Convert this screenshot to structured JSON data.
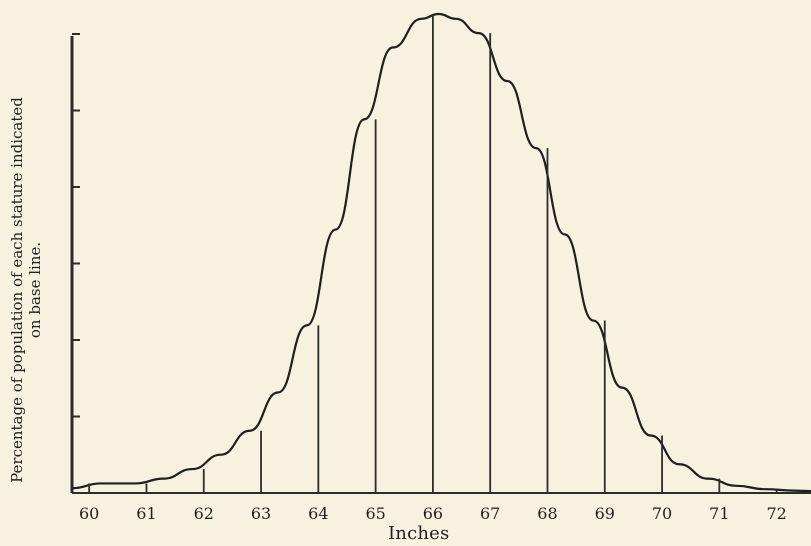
{
  "chart_data": {
    "type": "line",
    "title": "",
    "xlabel": "Inches",
    "ylabel": "Percentage of population of each stature indicated on base line.",
    "x_categories": [
      "60",
      "61",
      "62",
      "63",
      "64",
      "65",
      "66",
      "67",
      "68",
      "69",
      "70",
      "71",
      "72"
    ],
    "tick_labels_shown": [
      "60",
      "61",
      "62",
      "63",
      "64",
      "65",
      "66",
      "67",
      "68",
      "69",
      "70",
      "71",
      "72"
    ],
    "series": [
      {
        "values": [
          0.48,
          0.74,
          1.01,
          1.81,
          4.34,
          7.5,
          9.64,
          8.11,
          5.9,
          2.98,
          1.8,
          1.24,
          0.55
        ]
      }
    ],
    "ylim": [
      0,
      100
    ],
    "grid": false,
    "legend": "",
    "bell_curve": {
      "x": [
        59.7,
        60.2,
        60.8,
        61.3,
        61.8,
        62.3,
        62.8,
        63.3,
        63.8,
        64.3,
        64.8,
        65.3,
        65.8,
        66.1,
        66.4,
        66.8,
        67.3,
        67.8,
        68.3,
        68.8,
        69.3,
        69.8,
        70.3,
        70.8,
        71.3,
        71.8,
        72.3,
        72.6
      ],
      "y": [
        0.01,
        0.02,
        0.02,
        0.03,
        0.05,
        0.08,
        0.13,
        0.21,
        0.35,
        0.55,
        0.78,
        0.93,
        0.99,
        1.0,
        0.99,
        0.96,
        0.86,
        0.72,
        0.54,
        0.36,
        0.22,
        0.12,
        0.06,
        0.03,
        0.015,
        0.008,
        0.005,
        0.004
      ]
    }
  },
  "labels": {
    "ylabel_line1": "Percentage of population of each stature indicated",
    "ylabel_line2": "on base line.",
    "xlabel": "Inches"
  }
}
